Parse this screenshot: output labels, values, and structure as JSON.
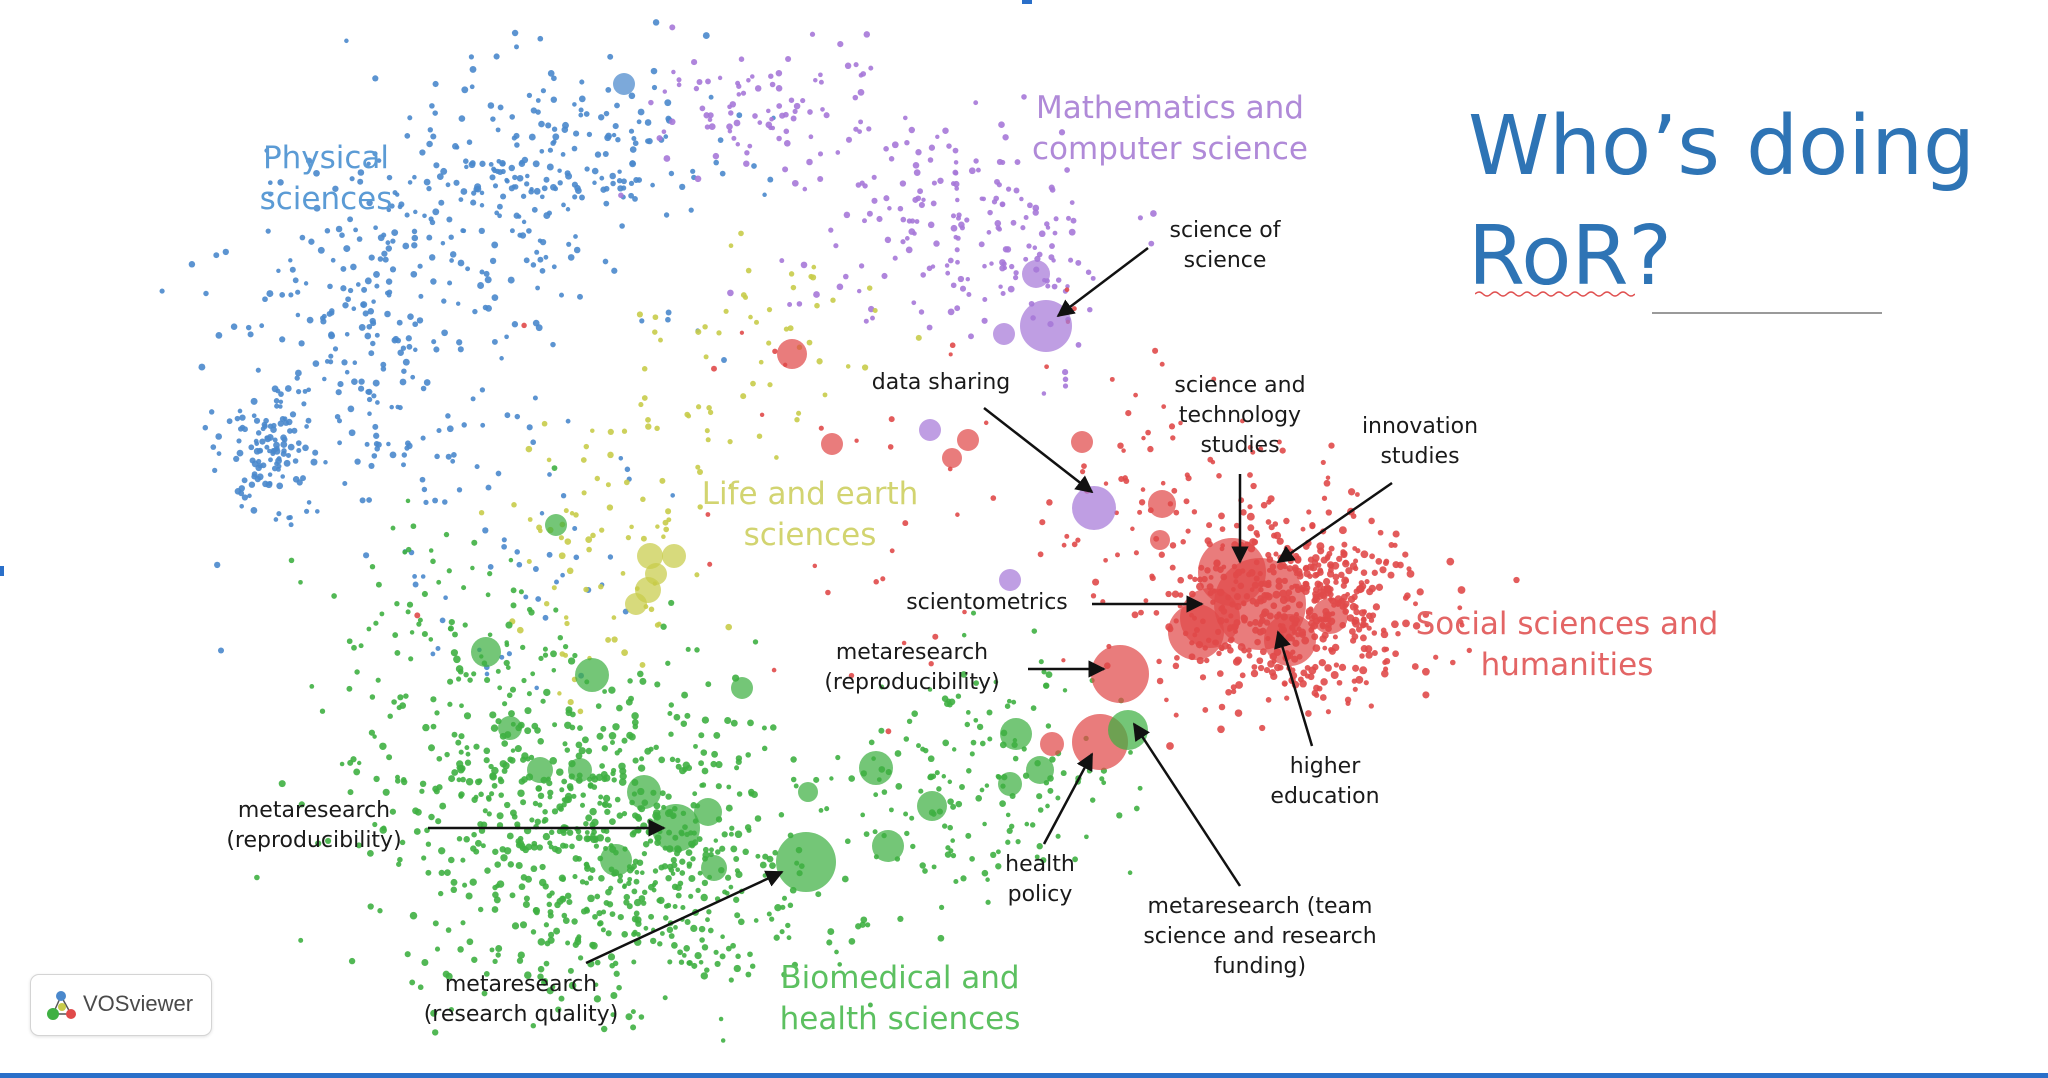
{
  "slide": {
    "title": "Who’s doing\nRoR?"
  },
  "clusters": [
    {
      "id": "physical",
      "label": "Physical\nsciences",
      "color": "#4a88cc",
      "label_color": "#5b9bd5"
    },
    {
      "id": "math",
      "label": "Mathematics and\ncomputer science",
      "color": "#a678d8",
      "label_color": "#b08ad8"
    },
    {
      "id": "life",
      "label": "Life and earth\nsciences",
      "color": "#c8cc4a",
      "label_color": "#d2d470"
    },
    {
      "id": "social",
      "label": "Social sciences and\nhumanities",
      "color": "#e04a4a",
      "label_color": "#e36565"
    },
    {
      "id": "bio",
      "label": "Biomedical and\nhealth sciences",
      "color": "#3fb043",
      "label_color": "#5cc060"
    }
  ],
  "annotations": [
    {
      "id": "science-of-science",
      "text": "science of\nscience"
    },
    {
      "id": "data-sharing",
      "text": "data sharing"
    },
    {
      "id": "sts",
      "text": "science and\ntechnology\nstudies"
    },
    {
      "id": "innovation",
      "text": "innovation\nstudies"
    },
    {
      "id": "scientometrics",
      "text": "scientometrics"
    },
    {
      "id": "meta-repro-mid",
      "text": "metaresearch\n(reproducibility)"
    },
    {
      "id": "higher-ed",
      "text": "higher\neducation"
    },
    {
      "id": "meta-repro-left",
      "text": "metaresearch\n(reproducibility)"
    },
    {
      "id": "health-policy",
      "text": "health\npolicy"
    },
    {
      "id": "meta-team",
      "text": "metaresearch (team\nscience and research\nfunding)"
    },
    {
      "id": "meta-quality",
      "text": "metaresearch\n(research quality)"
    }
  ],
  "logo": {
    "text": "VOSviewer",
    "icon": "vosviewer-logo-icon"
  }
}
